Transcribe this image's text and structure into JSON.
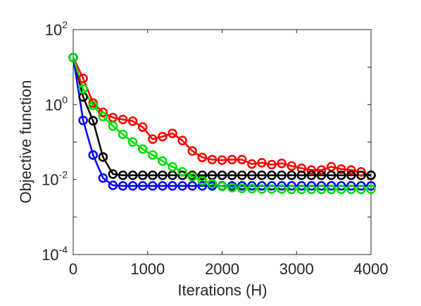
{
  "chart_data": {
    "type": "line",
    "xlabel": "Iterations (H)",
    "ylabel": "Objective function",
    "xlim": [
      0,
      4000
    ],
    "ylim": [
      0.0001,
      100
    ],
    "yscale": "log",
    "grid": false,
    "x_ticks": [
      "0",
      "1000",
      "2000",
      "3000",
      "4000"
    ],
    "y_ticks": [
      {
        "base": "10",
        "exp": "2"
      },
      {
        "base": "10",
        "exp": "0"
      },
      {
        "base": "10",
        "exp": "-2"
      },
      {
        "base": "10",
        "exp": "-4"
      }
    ],
    "x": [
      0,
      133,
      267,
      400,
      533,
      667,
      800,
      933,
      1067,
      1200,
      1333,
      1467,
      1600,
      1733,
      1867,
      2000,
      2133,
      2267,
      2400,
      2533,
      2667,
      2800,
      2933,
      3067,
      3200,
      3333,
      3467,
      3600,
      3733,
      3867,
      4000
    ],
    "series": [
      {
        "color": "#ff0000",
        "marker": "circle",
        "values": [
          18,
          5.0,
          1.1,
          0.62,
          0.45,
          0.4,
          0.36,
          0.25,
          0.12,
          0.14,
          0.17,
          0.11,
          0.058,
          0.039,
          0.034,
          0.033,
          0.034,
          0.034,
          0.026,
          0.028,
          0.025,
          0.027,
          0.023,
          0.02,
          0.018,
          0.018,
          0.022,
          0.019,
          0.018,
          0.016,
          0.013
        ]
      },
      {
        "color": "#000000",
        "marker": "circle",
        "values": [
          18,
          1.6,
          0.37,
          0.04,
          0.014,
          0.013,
          0.013,
          0.013,
          0.013,
          0.013,
          0.013,
          0.013,
          0.013,
          0.013,
          0.013,
          0.013,
          0.013,
          0.013,
          0.013,
          0.013,
          0.013,
          0.013,
          0.013,
          0.013,
          0.013,
          0.013,
          0.013,
          0.013,
          0.013,
          0.013,
          0.013
        ]
      },
      {
        "color": "#0000ff",
        "marker": "circle",
        "values": [
          18,
          0.38,
          0.045,
          0.011,
          0.007,
          0.0068,
          0.0068,
          0.0068,
          0.0068,
          0.0068,
          0.0068,
          0.0068,
          0.0068,
          0.0068,
          0.0068,
          0.0068,
          0.0068,
          0.0068,
          0.0068,
          0.0068,
          0.0068,
          0.0068,
          0.0068,
          0.0068,
          0.0068,
          0.0068,
          0.0068,
          0.0068,
          0.0068,
          0.0068,
          0.0068
        ]
      },
      {
        "color": "#00dd00",
        "marker": "circle",
        "values": [
          18,
          2.6,
          0.95,
          0.48,
          0.27,
          0.16,
          0.1,
          0.065,
          0.045,
          0.031,
          0.022,
          0.016,
          0.012,
          0.0093,
          0.0077,
          0.0066,
          0.0061,
          0.0058,
          0.0057,
          0.0056,
          0.0056,
          0.0056,
          0.0055,
          0.0055,
          0.0055,
          0.0055,
          0.0055,
          0.0055,
          0.0055,
          0.0055,
          0.0055
        ]
      }
    ]
  }
}
